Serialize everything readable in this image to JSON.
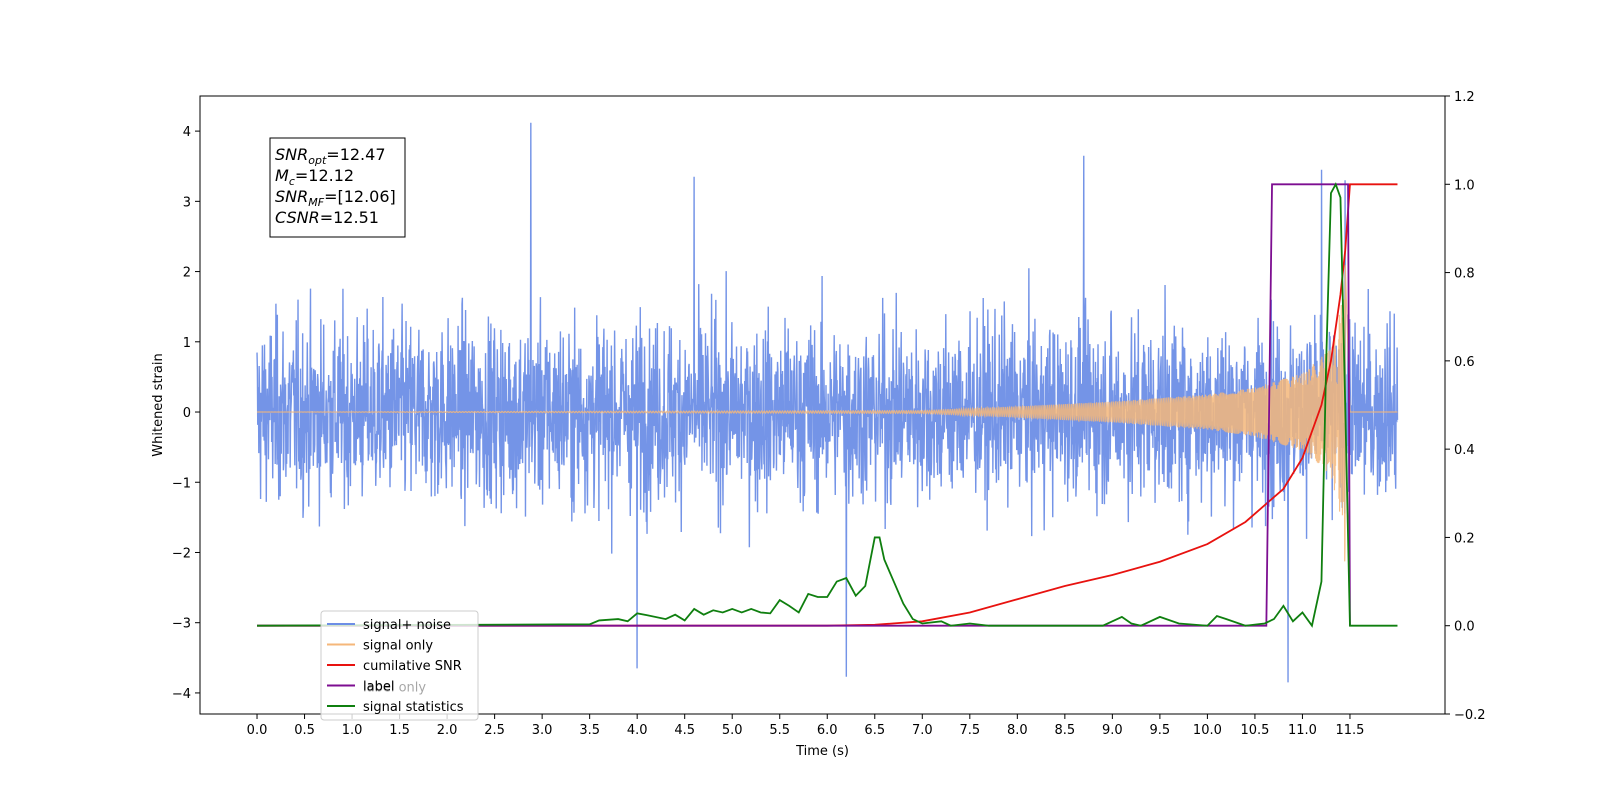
{
  "chart_data": {
    "type": "line",
    "xlabel": "Time (s)",
    "ylabel": "Whitened strain",
    "ylabel_right": "",
    "xlim": [
      -0.6,
      12.5
    ],
    "ylim": [
      -4.3,
      4.5
    ],
    "ylim_right": [
      -0.2,
      1.2
    ],
    "x_ticks": [
      0.0,
      0.5,
      1.0,
      1.5,
      2.0,
      2.5,
      3.0,
      3.5,
      4.0,
      4.5,
      5.0,
      5.5,
      6.0,
      6.5,
      7.0,
      7.5,
      8.0,
      8.5,
      9.0,
      9.5,
      10.0,
      10.5,
      11.0,
      11.5
    ],
    "x_tick_labels": [
      "0.0",
      "0.5",
      "1.0",
      "1.5",
      "2.0",
      "2.5",
      "3.0",
      "3.5",
      "4.0",
      "4.5",
      "5.0",
      "5.5",
      "6.0",
      "6.5",
      "7.0",
      "7.5",
      "8.0",
      "8.5",
      "9.0",
      "9.5",
      "10.0",
      "10.5",
      "11.0",
      "11.5"
    ],
    "y_ticks": [
      -4,
      -3,
      -2,
      -1,
      0,
      1,
      2,
      3,
      4
    ],
    "y_tick_labels": [
      "−4",
      "−3",
      "−2",
      "−1",
      "0",
      "1",
      "2",
      "3",
      "4"
    ],
    "y_ticks_right": [
      -0.2,
      0.0,
      0.2,
      0.4,
      0.6,
      0.8,
      1.0,
      1.2
    ],
    "y_tick_labels_right": [
      "−0.2",
      "0.0",
      "0.2",
      "0.4",
      "0.6",
      "0.8",
      "1.0",
      "1.2"
    ],
    "grid": false,
    "legend_position": "lower-left",
    "series": [
      {
        "name": "signal+ noise",
        "color": "#6d8ee6",
        "axis": "left",
        "kind": "noise",
        "x_range": [
          0.0,
          12.0
        ],
        "typical_amplitude": [
          -2.0,
          2.1
        ],
        "extremes": [
          -3.9,
          4.1
        ],
        "peaks": [
          [
            2.88,
            4.12
          ],
          [
            11.2,
            3.45
          ],
          [
            11.45,
            3.3
          ],
          [
            8.7,
            3.65
          ],
          [
            4.6,
            3.35
          ],
          [
            10.85,
            -3.85
          ],
          [
            6.2,
            -3.77
          ],
          [
            4.0,
            -3.65
          ]
        ]
      },
      {
        "name": "signal only",
        "color": "#f5b77a",
        "axis": "left",
        "kind": "chirp",
        "x_range": [
          0.0,
          12.0
        ],
        "merger_time": 11.45,
        "envelope": [
          [
            0.0,
            0.0
          ],
          [
            7.0,
            0.02
          ],
          [
            7.5,
            0.05
          ],
          [
            8.0,
            0.08
          ],
          [
            9.0,
            0.15
          ],
          [
            10.0,
            0.25
          ],
          [
            10.5,
            0.35
          ],
          [
            11.0,
            0.55
          ],
          [
            11.3,
            0.9
          ],
          [
            11.42,
            1.6
          ],
          [
            11.45,
            2.3
          ],
          [
            11.5,
            0.0
          ],
          [
            12.0,
            0.0
          ]
        ]
      },
      {
        "name": "cumilative SNR",
        "color": "#e8120f",
        "axis": "right",
        "x": [
          0.0,
          6.0,
          6.5,
          7.0,
          7.5,
          8.0,
          8.5,
          9.0,
          9.5,
          10.0,
          10.4,
          10.8,
          11.0,
          11.2,
          11.3,
          11.4,
          11.45,
          11.5,
          12.0
        ],
        "y": [
          0.0,
          0.0,
          0.002,
          0.01,
          0.03,
          0.06,
          0.09,
          0.115,
          0.145,
          0.185,
          0.235,
          0.31,
          0.38,
          0.5,
          0.6,
          0.75,
          0.85,
          1.0,
          1.0
        ]
      },
      {
        "name": "label",
        "color": "#7d0e91",
        "axis": "right",
        "x": [
          0.0,
          10.62,
          10.68,
          11.48,
          11.5
        ],
        "y": [
          0.0,
          0.0,
          1.0,
          1.0,
          0.0
        ]
      },
      {
        "name": "label only",
        "color": "#7d0e91",
        "axis": "right",
        "hidden": true,
        "x": [],
        "y": []
      },
      {
        "name": "signal statistics",
        "color": "#0f7f0f",
        "axis": "right",
        "x": [
          0.0,
          3.2,
          3.5,
          3.6,
          3.8,
          3.9,
          4.0,
          4.1,
          4.3,
          4.4,
          4.5,
          4.6,
          4.7,
          4.8,
          4.9,
          5.0,
          5.1,
          5.2,
          5.3,
          5.4,
          5.5,
          5.6,
          5.7,
          5.8,
          5.9,
          6.0,
          6.1,
          6.2,
          6.3,
          6.4,
          6.5,
          6.55,
          6.6,
          6.7,
          6.8,
          6.9,
          7.0,
          7.2,
          7.3,
          7.5,
          7.7,
          8.0,
          8.9,
          9.0,
          9.1,
          9.2,
          9.3,
          9.5,
          9.7,
          10.0,
          10.1,
          10.2,
          10.4,
          10.6,
          10.7,
          10.8,
          10.9,
          11.0,
          11.1,
          11.2,
          11.25,
          11.3,
          11.35,
          11.4,
          11.45,
          11.5,
          12.0
        ],
        "y": [
          0.0,
          0.003,
          0.003,
          0.012,
          0.015,
          0.01,
          0.028,
          0.024,
          0.015,
          0.025,
          0.012,
          0.038,
          0.025,
          0.035,
          0.03,
          0.038,
          0.03,
          0.038,
          0.03,
          0.028,
          0.058,
          0.045,
          0.03,
          0.072,
          0.065,
          0.065,
          0.1,
          0.108,
          0.068,
          0.09,
          0.2,
          0.2,
          0.15,
          0.1,
          0.05,
          0.015,
          0.005,
          0.01,
          0.0,
          0.005,
          0.0,
          0.0,
          0.0,
          0.01,
          0.02,
          0.005,
          0.0,
          0.02,
          0.005,
          0.0,
          0.022,
          0.015,
          0.0,
          0.005,
          0.015,
          0.045,
          0.01,
          0.03,
          0.0,
          0.1,
          0.6,
          0.98,
          1.0,
          0.97,
          0.5,
          0.0,
          0.0
        ]
      }
    ],
    "annotation": {
      "lines": [
        {
          "main": "SNR",
          "sub": "opt",
          "value": "=12.47"
        },
        {
          "main": "M",
          "sub": "c",
          "value": "=12.12"
        },
        {
          "main": "SNR",
          "sub": "MF",
          "value": "=[12.06]"
        },
        {
          "main": "CSNR",
          "sub": "",
          "value": "=12.51"
        }
      ]
    }
  }
}
